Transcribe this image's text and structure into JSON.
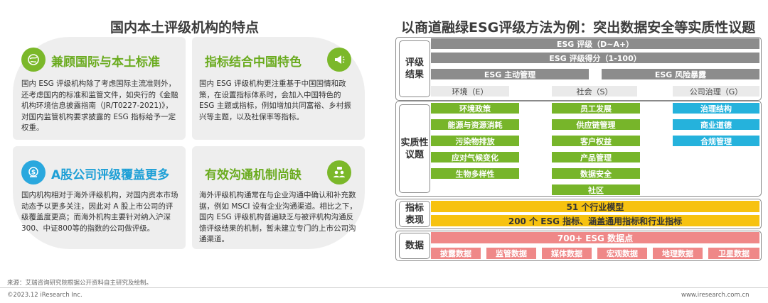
{
  "left": {
    "title": "国内本土评级机构的特点",
    "cards": [
      {
        "title": "兼顾国际与本土标准",
        "text": "国内 ESG 评级机构除了考虑国际主流准则外，还考虑国内的标准和监管文件，如央行的《金融机构环境信息披露指南（JR/T0227-2021)》，对国内监管机构要求披露的 ESG 指标给予一定权重。",
        "icon": "globe-leaf-icon"
      },
      {
        "title": "指标结合中国特色",
        "text": "国内 ESG 评级机构更注重基于中国国情和政策，在设置指标体系时，会加入中国特色的 ESG 主题或指标，例如增加共同富裕、乡村振兴等主题，以及社保率等指标。",
        "icon": "megaphone-icon"
      },
      {
        "title": "A股公司评级覆盖更多",
        "text": "国内机构相对于海外评级机构，对国内资本市场动态予以更多关注，因此对 A 股上市公司的评级覆盖度更高；而海外机构主要针对纳入沪深300、中证800等的指数的公司做评级。",
        "icon": "money-shield-icon"
      },
      {
        "title": "有效沟通机制尚缺",
        "text": "海外评级机构通常在与企业沟通中确认和补充数据，例如 MSCI 设有企业沟通渠道。相比之下，国内 ESG 评级机构普遍缺乏与被评机构沟通反馈评级结果的机制，暂未建立专门的上市公司沟通渠道。",
        "icon": "people-talk-icon"
      }
    ]
  },
  "right": {
    "title": "以商道融绿ESG评级方法为例：突出数据安全等实质性议题",
    "rows": {
      "rating": "评级\n结果",
      "material": "实质性\n议题",
      "indicator": "指标\n表现",
      "data": "数据"
    },
    "rating_bars": [
      "ESG 评级（D~A+）",
      "ESG 评级得分（1-100）",
      "ESG 主动管理",
      "ESG 风险暴露"
    ],
    "pillars": [
      "环境（E）",
      "社会（S）",
      "公司治理（G）"
    ],
    "env_topics": [
      "环境政策",
      "能源与资源消耗",
      "污染物排放",
      "应对气候变化",
      "生物多样性"
    ],
    "soc_topics": [
      "员工发展",
      "供应链管理",
      "客户权益",
      "产品管理",
      "数据安全",
      "社区"
    ],
    "gov_topics": [
      "治理结构",
      "商业道德",
      "合规管理"
    ],
    "indicator_bars": [
      "51 个行业模型",
      "200 个 ESG 指标、涵盖通用指标和行业指标"
    ],
    "data_bar": "700+ ESG 数据点",
    "data_sources": [
      "披露数据",
      "监管数据",
      "媒体数据",
      "宏观数据",
      "地理数据",
      "卫星数据"
    ]
  },
  "footer": {
    "source": "来源：艾瑞咨询研究院根据公开资料自主研究及绘制。",
    "copyright": "©2023.12 iResearch Inc.",
    "website": "www.iresearch.com.cn"
  },
  "colors": {
    "green": "#77b52a",
    "blue": "#25b2dc",
    "yellow": "#f7c210",
    "pink": "#ef8888",
    "gray": "#8c8c8c",
    "icon_green": "#7bb82a",
    "icon_blue": "#2aa8de"
  }
}
